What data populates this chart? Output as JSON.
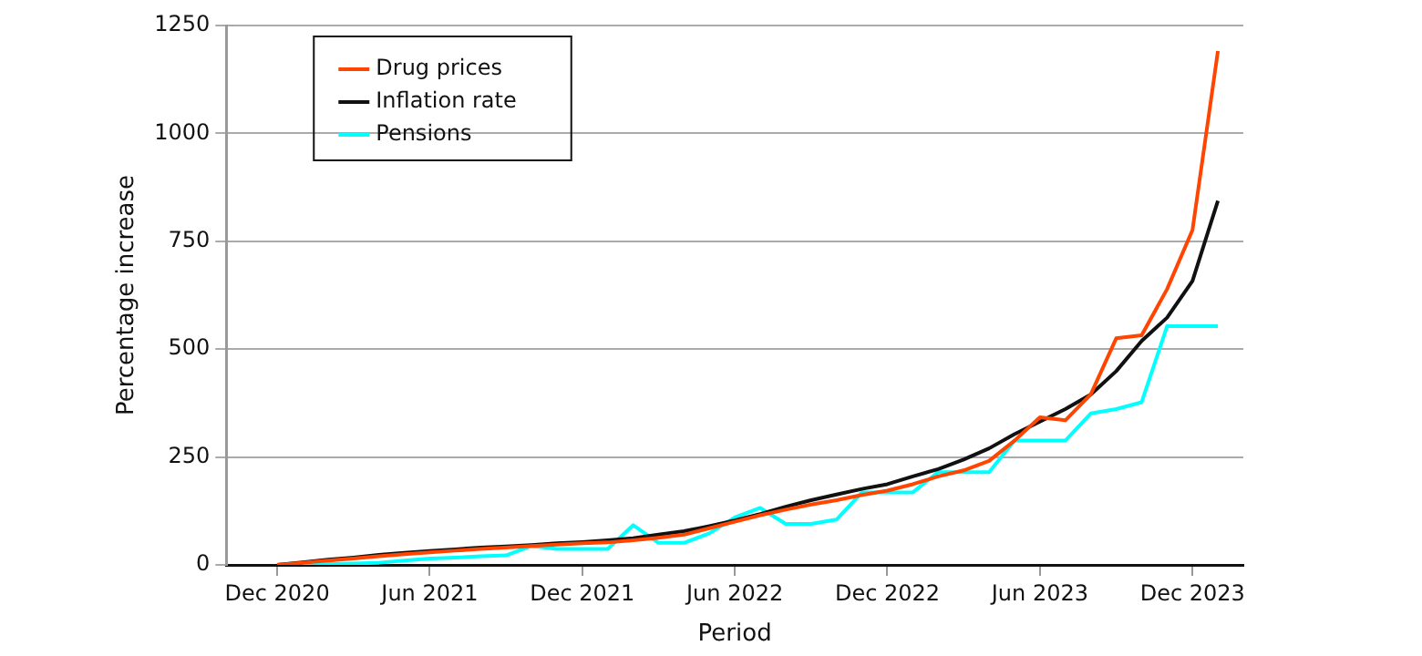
{
  "chart_data": {
    "type": "line",
    "xlabel": "Period",
    "ylabel": "Percentage increase",
    "x": [
      "2020-12",
      "2021-01",
      "2021-02",
      "2021-03",
      "2021-04",
      "2021-05",
      "2021-06",
      "2021-07",
      "2021-08",
      "2021-09",
      "2021-10",
      "2021-11",
      "2021-12",
      "2022-01",
      "2022-02",
      "2022-03",
      "2022-04",
      "2022-05",
      "2022-06",
      "2022-07",
      "2022-08",
      "2022-09",
      "2022-10",
      "2022-11",
      "2022-12",
      "2023-01",
      "2023-02",
      "2023-03",
      "2023-04",
      "2023-05",
      "2023-06",
      "2023-07",
      "2023-08",
      "2023-09",
      "2023-10",
      "2023-11",
      "2023-12",
      "2024-01"
    ],
    "series": [
      {
        "name": "Drug prices",
        "color": "#ff4500",
        "values": [
          0,
          5,
          10,
          15,
          20,
          25,
          29,
          33,
          37,
          40,
          44,
          47,
          50,
          52,
          57,
          63,
          70,
          85,
          100,
          115,
          128,
          140,
          150,
          162,
          172,
          187,
          205,
          219,
          241,
          288,
          342,
          335,
          395,
          525,
          532,
          639,
          776,
          1191
        ]
      },
      {
        "name": "Inflation rate",
        "color": "#111111",
        "values": [
          0,
          6,
          12,
          17,
          23,
          28,
          32,
          36,
          40,
          43,
          46,
          50,
          53,
          57,
          62,
          70,
          78,
          90,
          103,
          118,
          135,
          150,
          163,
          176,
          187,
          205,
          222,
          244,
          270,
          303,
          332,
          361,
          395,
          449,
          519,
          573,
          658,
          844
        ]
      },
      {
        "name": "Pensions",
        "color": "#00ffff",
        "values": [
          0,
          0,
          2,
          3,
          5,
          10,
          15,
          17,
          20,
          22,
          44,
          37,
          37,
          37,
          92,
          51,
          51,
          73,
          110,
          132,
          95,
          95,
          105,
          168,
          168,
          168,
          215,
          215,
          215,
          288,
          288,
          288,
          351,
          361,
          377,
          553,
          553,
          553
        ]
      }
    ],
    "xlim": [
      "2020-10",
      "2024-02"
    ],
    "xticks": [
      {
        "value": "2020-12",
        "label": "Dec 2020"
      },
      {
        "value": "2021-06",
        "label": "Jun 2021"
      },
      {
        "value": "2021-12",
        "label": "Dec 2021"
      },
      {
        "value": "2022-06",
        "label": "Jun 2022"
      },
      {
        "value": "2022-12",
        "label": "Dec 2022"
      },
      {
        "value": "2023-06",
        "label": "Jun 2023"
      },
      {
        "value": "2023-12",
        "label": "Dec 2023"
      }
    ],
    "ylim": [
      0,
      1250
    ],
    "yticks": [
      0,
      250,
      500,
      750,
      1000,
      1250
    ],
    "grid": "y",
    "legend": "top left",
    "marker": "none",
    "line_style": "solid"
  }
}
